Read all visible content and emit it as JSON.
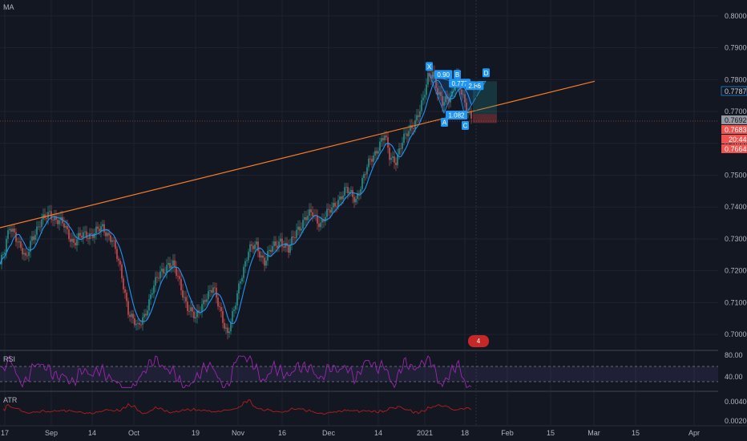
{
  "panes": {
    "main": {
      "indicator": "MA"
    },
    "rsi": {
      "title": "RSI",
      "levels": [
        "80.00",
        "40.00"
      ]
    },
    "atr": {
      "title": "ATR",
      "levels": [
        "0.00400",
        "0.00200"
      ]
    }
  },
  "price_labels": {
    "current": "0.77870",
    "last": "0.76920",
    "bid": "0.76831",
    "countdown": "20:44",
    "low": "0.76642"
  },
  "pattern": {
    "points": [
      "X",
      "A",
      "B",
      "C",
      "D"
    ],
    "ratios": [
      "0.90",
      "0.777",
      "2.86",
      "1.082"
    ]
  },
  "event_badge": {
    "count": "4"
  },
  "colors": {
    "background": "#131722",
    "grid": "#1f2230",
    "candle_up": "#26a69a",
    "candle_down": "#ef5350",
    "ma": "#2196f3",
    "trendline": "#f57c28",
    "rsi": "#9c27b0",
    "atr": "#b71c1c",
    "pattern": "#2196f3"
  },
  "chart_data": {
    "type": "candlestick",
    "x_ticks": [
      "17",
      "Sep",
      "14",
      "Oct",
      "19",
      "Nov",
      "16",
      "Dec",
      "14",
      "2021",
      "18",
      "Feb",
      "15",
      "Mar",
      "15",
      "Apr"
    ],
    "y_ticks": [
      "0.80000",
      "0.79000",
      "0.78000",
      "0.77000",
      "0.76000",
      "0.75000",
      "0.74000",
      "0.73000",
      "0.72000",
      "0.71000",
      "0.70000"
    ],
    "ylim": [
      0.695,
      0.805
    ],
    "price_path": [
      [
        0,
        0.722
      ],
      [
        3,
        0.726
      ],
      [
        6,
        0.734
      ],
      [
        9,
        0.7325
      ],
      [
        12,
        0.728
      ],
      [
        16,
        0.723
      ],
      [
        20,
        0.731
      ],
      [
        26,
        0.735
      ],
      [
        31,
        0.7385
      ],
      [
        35,
        0.736
      ],
      [
        40,
        0.734
      ],
      [
        46,
        0.729
      ],
      [
        52,
        0.731
      ],
      [
        58,
        0.732
      ],
      [
        64,
        0.733
      ],
      [
        70,
        0.7305
      ],
      [
        75,
        0.72
      ],
      [
        80,
        0.708
      ],
      [
        86,
        0.7015
      ],
      [
        90,
        0.706
      ],
      [
        95,
        0.714
      ],
      [
        100,
        0.719
      ],
      [
        105,
        0.7225
      ],
      [
        108,
        0.7215
      ],
      [
        112,
        0.716
      ],
      [
        117,
        0.709
      ],
      [
        122,
        0.7045
      ],
      [
        128,
        0.712
      ],
      [
        133,
        0.714
      ],
      [
        138,
        0.707
      ],
      [
        142,
        0.7
      ],
      [
        146,
        0.707
      ],
      [
        150,
        0.718
      ],
      [
        155,
        0.726
      ],
      [
        160,
        0.728
      ],
      [
        165,
        0.723
      ],
      [
        170,
        0.727
      ],
      [
        175,
        0.73
      ],
      [
        180,
        0.726
      ],
      [
        185,
        0.733
      ],
      [
        190,
        0.736
      ],
      [
        195,
        0.738
      ],
      [
        200,
        0.735
      ],
      [
        205,
        0.738
      ],
      [
        210,
        0.742
      ],
      [
        216,
        0.745
      ],
      [
        222,
        0.743
      ],
      [
        227,
        0.749
      ],
      [
        231,
        0.755
      ],
      [
        236,
        0.759
      ],
      [
        240,
        0.762
      ],
      [
        243,
        0.756
      ],
      [
        247,
        0.755
      ],
      [
        251,
        0.76
      ],
      [
        256,
        0.765
      ],
      [
        261,
        0.769
      ],
      [
        264,
        0.773
      ],
      [
        267,
        0.781
      ],
      [
        270,
        0.783
      ],
      [
        273,
        0.776
      ],
      [
        276,
        0.772
      ],
      [
        279,
        0.774
      ],
      [
        282,
        0.776
      ],
      [
        285,
        0.781
      ],
      [
        288,
        0.775
      ],
      [
        291,
        0.771
      ],
      [
        294,
        0.769
      ]
    ],
    "harmonic_pattern": {
      "X": [
        268,
        0.7815
      ],
      "A": [
        277,
        0.7695
      ],
      "B": [
        285,
        0.779
      ],
      "C": [
        290,
        0.7685
      ],
      "D": [
        303,
        0.7795
      ]
    },
    "trendline": {
      "x": [
        0,
        371
      ],
      "y": [
        0.7335,
        0.7795
      ]
    },
    "rsi": {
      "upper": 63,
      "lower": 37,
      "range": [
        20,
        90
      ]
    },
    "atr": {
      "range": [
        0.001,
        0.0055
      ]
    }
  }
}
